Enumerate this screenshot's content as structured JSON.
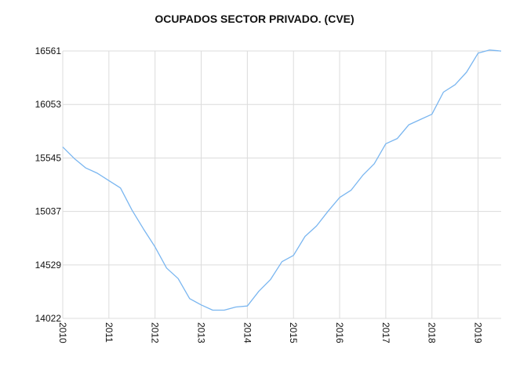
{
  "chart_data": {
    "type": "line",
    "title": "OCUPADOS SECTOR PRIVADO. (CVE)",
    "xlabel": "",
    "ylabel": "",
    "x_ticks": [
      "2010",
      "2011",
      "2012",
      "2013",
      "2014",
      "2015",
      "2016",
      "2017",
      "2018",
      "2019"
    ],
    "y_ticks": [
      16561,
      16053,
      15545,
      15037,
      14529,
      14022
    ],
    "xlim": [
      2010.0,
      2019.5
    ],
    "ylim": [
      14022,
      16561
    ],
    "grid": true,
    "line_color": "#7ab6f0",
    "series": [
      {
        "x": [
          2010.0,
          2010.25,
          2010.5,
          2010.75,
          2011.0,
          2011.25,
          2011.5,
          2011.75,
          2012.0,
          2012.25,
          2012.5,
          2012.75,
          2013.0,
          2013.25,
          2013.5,
          2013.75,
          2014.0,
          2014.25,
          2014.5,
          2014.75,
          2015.0,
          2015.25,
          2015.5,
          2015.75,
          2016.0,
          2016.25,
          2016.5,
          2016.75,
          2017.0,
          2017.25,
          2017.5,
          2017.75,
          2018.0,
          2018.25,
          2018.5,
          2018.75,
          2019.0,
          2019.25,
          2019.5
        ],
        "values": [
          15650,
          15540,
          15450,
          15400,
          15330,
          15260,
          15050,
          14870,
          14700,
          14500,
          14400,
          14210,
          14150,
          14100,
          14100,
          14130,
          14140,
          14280,
          14390,
          14560,
          14620,
          14800,
          14900,
          15040,
          15170,
          15240,
          15380,
          15490,
          15680,
          15730,
          15860,
          15910,
          15960,
          16170,
          16240,
          16360,
          16540,
          16570,
          16560
        ]
      }
    ]
  }
}
